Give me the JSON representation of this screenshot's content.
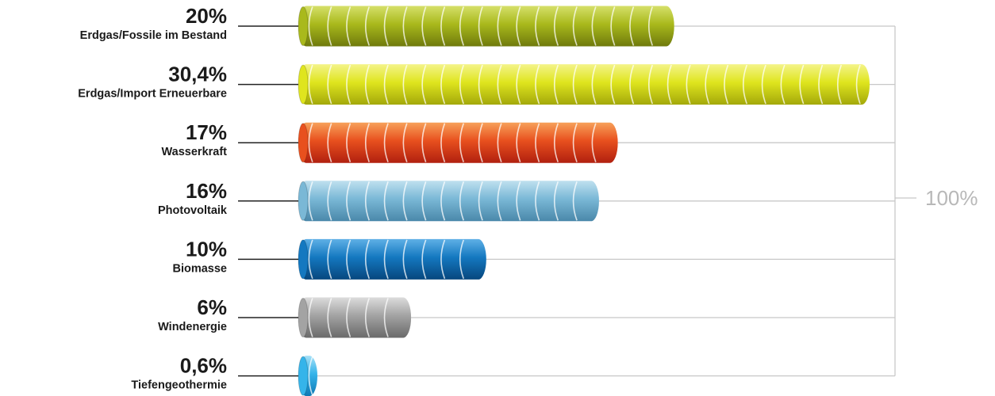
{
  "chart_data": {
    "type": "bar",
    "orientation": "horizontal",
    "categories": [
      "Erdgas/Fossile im Bestand",
      "Erdgas/Import Erneuerbare",
      "Wasserkraft",
      "Photovoltaik",
      "Biomasse",
      "Windenergie",
      "Tiefengeothermie"
    ],
    "values": [
      20,
      30.4,
      17,
      16,
      10,
      6,
      0.6
    ],
    "value_labels": [
      "20%",
      "30,4%",
      "17%",
      "16%",
      "10%",
      "6%",
      "0,6%"
    ],
    "unit": "%",
    "total_label": "100%",
    "xlim": [
      0,
      30.4
    ],
    "grid": false,
    "legend": "none",
    "colors": {
      "Erdgas/Fossile im Bestand": [
        "#d6e06a",
        "#a9b91c",
        "#6f7a0c"
      ],
      "Erdgas/Import Erneuerbare": [
        "#f4f48a",
        "#dfe51e",
        "#a3a80a"
      ],
      "Wasserkraft": [
        "#f7a15a",
        "#e8501e",
        "#b1200f"
      ],
      "Photovoltaik": [
        "#bfe0ef",
        "#7ab8d6",
        "#4a88aa"
      ],
      "Biomasse": [
        "#5fb0e6",
        "#1478c0",
        "#07477e"
      ],
      "Windenergie": [
        "#dcdcdc",
        "#a3a3a3",
        "#6a6a6a"
      ],
      "Tiefengeothermie": [
        "#a6e0f7",
        "#35b4ea",
        "#0e78b4"
      ]
    },
    "bracket_color": "#c8c8c8",
    "total_color": "#b8b8b8"
  }
}
